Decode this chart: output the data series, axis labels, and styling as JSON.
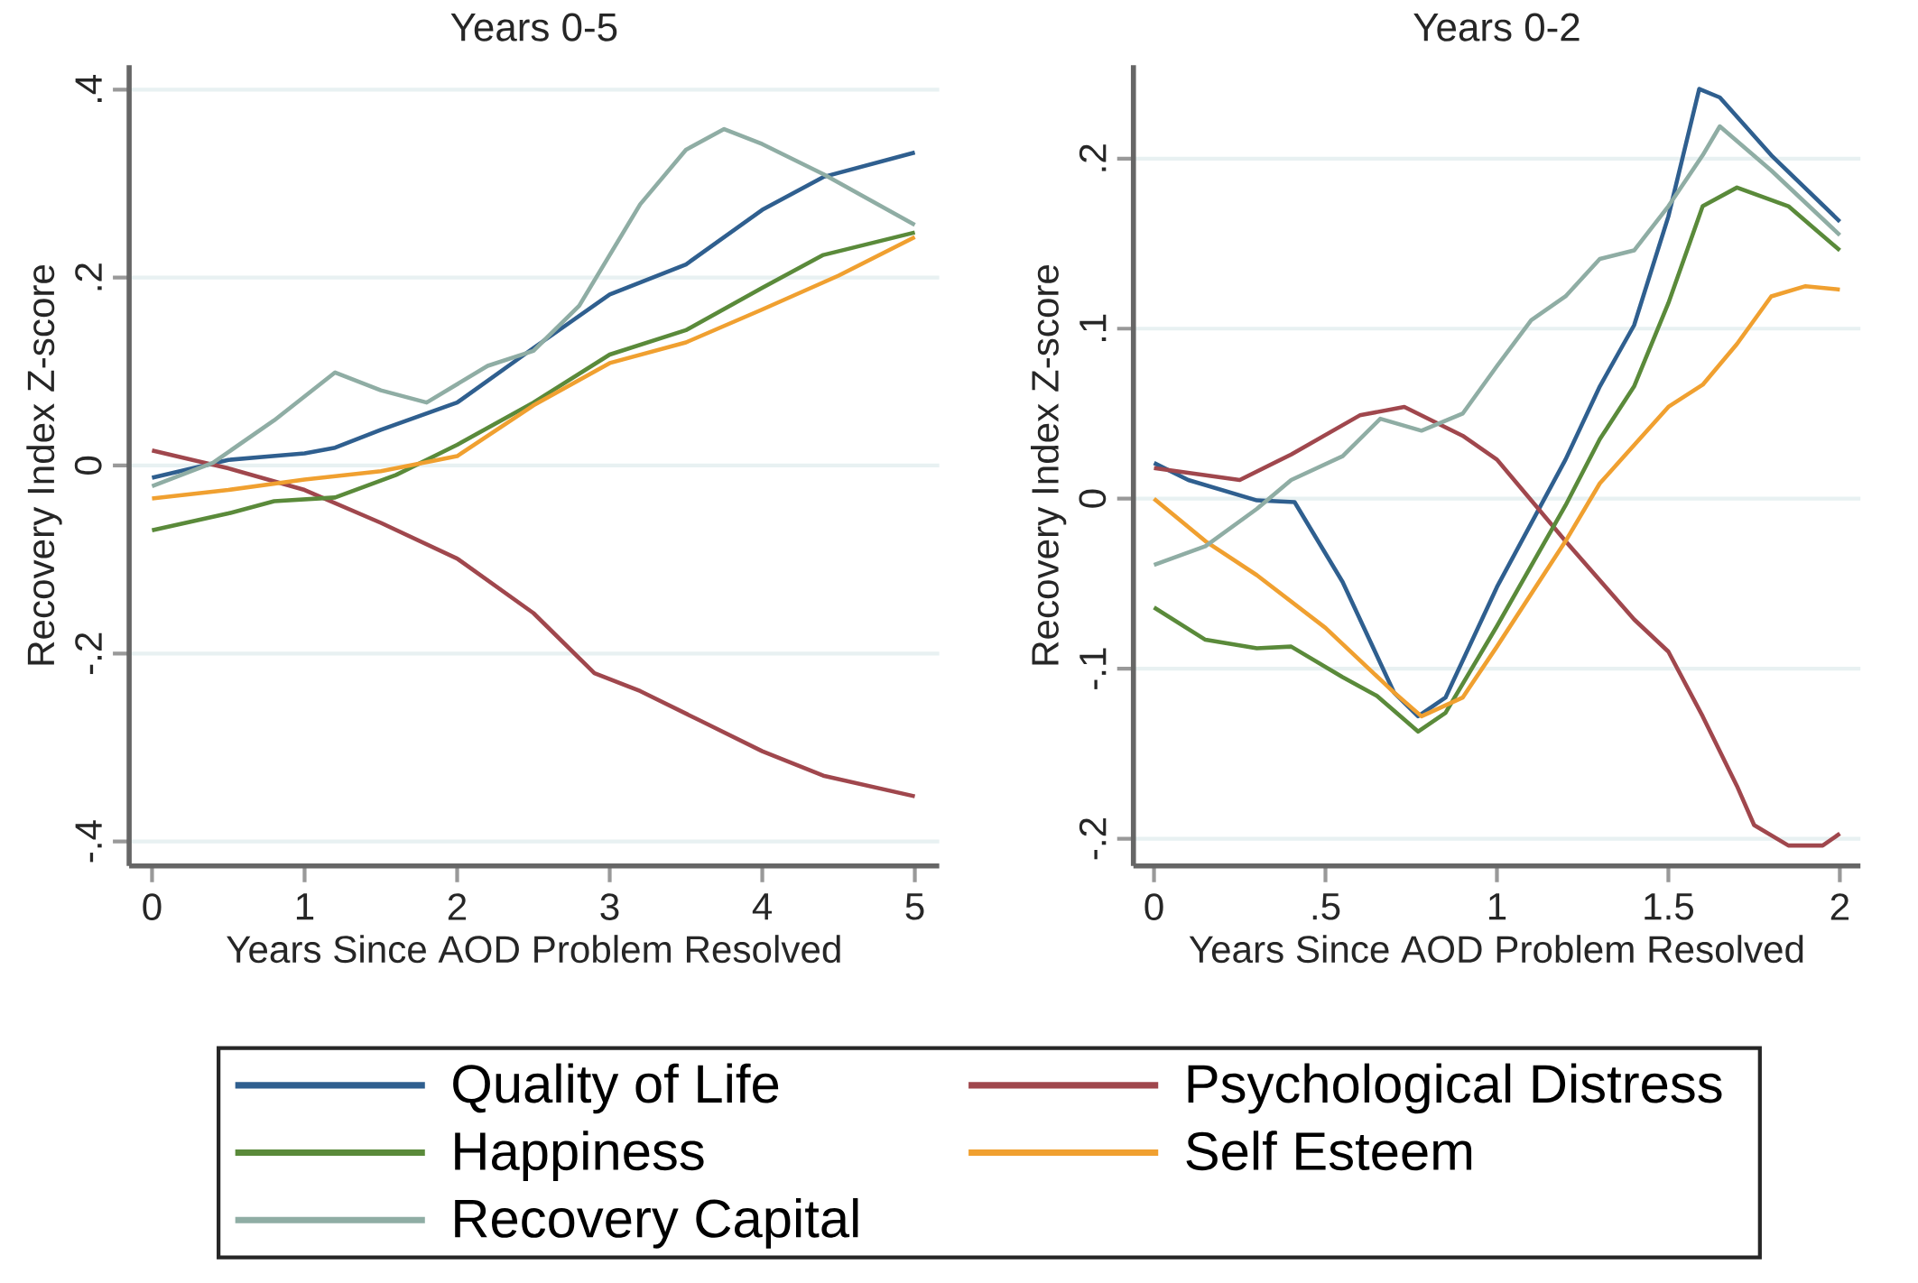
{
  "chart_data": [
    {
      "type": "line",
      "title": "Years 0-5",
      "xlabel": "Years Since AOD Problem Resolved",
      "ylabel": "Recovery Index Z-score",
      "xlim": [
        -0.15,
        5.16
      ],
      "ylim": [
        -0.426,
        0.426
      ],
      "xticks": [
        0,
        1,
        2,
        3,
        4,
        5
      ],
      "yticks": [
        {
          "value": -0.4,
          "label": "-.4"
        },
        {
          "value": -0.2,
          "label": "-.2"
        },
        0,
        {
          "value": 0.2,
          "label": ".2"
        },
        {
          "value": 0.4,
          "label": ".4"
        }
      ],
      "grid": "y",
      "legend": "bottom",
      "line_style": "solid",
      "marker": "none",
      "series": [
        {
          "name": "Quality of Life",
          "color": "#2f5f8f",
          "x": [
            0,
            0.5,
            1,
            1.2,
            1.5,
            2,
            2.5,
            3,
            3.5,
            4,
            4.4,
            5
          ],
          "values": [
            -0.013,
            0.006,
            0.013,
            0.019,
            0.038,
            0.067,
            0.125,
            0.182,
            0.214,
            0.272,
            0.307,
            0.333
          ]
        },
        {
          "name": "Psychological Distress",
          "color": "#a0474d",
          "x": [
            0,
            0.5,
            1,
            1.5,
            2,
            2.5,
            2.9,
            3.2,
            3.6,
            4,
            4.4,
            5
          ],
          "values": [
            0.016,
            -0.003,
            -0.026,
            -0.061,
            -0.099,
            -0.157,
            -0.221,
            -0.24,
            -0.272,
            -0.304,
            -0.33,
            -0.352
          ]
        },
        {
          "name": "Happiness",
          "color": "#5a8a3a",
          "x": [
            0,
            0.5,
            0.8,
            1.2,
            1.6,
            2,
            2.5,
            3,
            3.5,
            4,
            4.4,
            5
          ],
          "values": [
            -0.069,
            -0.051,
            -0.038,
            -0.034,
            -0.01,
            0.022,
            0.067,
            0.118,
            0.144,
            0.189,
            0.224,
            0.248
          ]
        },
        {
          "name": "Self Esteem",
          "color": "#f0a030",
          "x": [
            0,
            0.5,
            1,
            1.5,
            2,
            2.5,
            3,
            3.5,
            4,
            4.5,
            5
          ],
          "values": [
            -0.035,
            -0.026,
            -0.015,
            -0.006,
            0.01,
            0.064,
            0.109,
            0.131,
            0.166,
            0.202,
            0.243
          ]
        },
        {
          "name": "Recovery Capital",
          "color": "#8fada4",
          "x": [
            0,
            0.4,
            0.8,
            1.2,
            1.5,
            1.8,
            2.2,
            2.5,
            2.8,
            3.2,
            3.5,
            3.75,
            4,
            4.4,
            5
          ],
          "values": [
            -0.022,
            0.003,
            0.048,
            0.099,
            0.08,
            0.067,
            0.106,
            0.122,
            0.17,
            0.278,
            0.336,
            0.358,
            0.342,
            0.31,
            0.256
          ]
        }
      ]
    },
    {
      "type": "line",
      "title": "Years 0-2",
      "xlabel": "Years Since AOD Problem Resolved",
      "ylabel": "Recovery Index Z-score",
      "xlim": [
        -0.06,
        2.06
      ],
      "ylim": [
        -0.216,
        0.255
      ],
      "xticks": [
        0,
        {
          "value": 0.5,
          "label": ".5"
        },
        1,
        1.5,
        2
      ],
      "yticks": [
        {
          "value": -0.2,
          "label": "-.2"
        },
        {
          "value": -0.1,
          "label": "-.1"
        },
        0,
        {
          "value": 0.1,
          "label": ".1"
        },
        {
          "value": 0.2,
          "label": ".2"
        }
      ],
      "grid": "y",
      "line_style": "solid",
      "marker": "none",
      "series": [
        {
          "color": "#2f5f8f",
          "x": [
            0,
            0.1,
            0.3,
            0.41,
            0.55,
            0.7,
            0.77,
            0.85,
            1.0,
            1.2,
            1.3,
            1.4,
            1.5,
            1.59,
            1.65,
            1.8,
            2.0
          ],
          "values": [
            0.021,
            0.011,
            -0.001,
            -0.002,
            -0.049,
            -0.114,
            -0.128,
            -0.117,
            -0.052,
            0.023,
            0.066,
            0.102,
            0.166,
            0.241,
            0.236,
            0.202,
            0.163
          ]
        },
        {
          "color": "#a0474d",
          "x": [
            0,
            0.25,
            0.4,
            0.6,
            0.73,
            0.9,
            1.0,
            1.1,
            1.2,
            1.4,
            1.5,
            1.6,
            1.7,
            1.75,
            1.85,
            1.95,
            2.0
          ],
          "values": [
            0.018,
            0.011,
            0.026,
            0.049,
            0.054,
            0.037,
            0.023,
            -0.001,
            -0.025,
            -0.071,
            -0.09,
            -0.128,
            -0.169,
            -0.192,
            -0.204,
            -0.204,
            -0.197
          ]
        },
        {
          "color": "#5a8a3a",
          "x": [
            0,
            0.15,
            0.3,
            0.4,
            0.55,
            0.65,
            0.77,
            0.85,
            1.0,
            1.2,
            1.3,
            1.4,
            1.5,
            1.6,
            1.7,
            1.85,
            2.0
          ],
          "values": [
            -0.064,
            -0.083,
            -0.088,
            -0.087,
            -0.105,
            -0.116,
            -0.137,
            -0.126,
            -0.075,
            -0.004,
            0.035,
            0.066,
            0.115,
            0.172,
            0.183,
            0.172,
            0.146
          ]
        },
        {
          "color": "#f0a030",
          "x": [
            0,
            0.15,
            0.3,
            0.5,
            0.7,
            0.78,
            0.9,
            1.0,
            1.2,
            1.3,
            1.5,
            1.6,
            1.7,
            1.8,
            1.9,
            2.0
          ],
          "values": [
            0.0,
            -0.025,
            -0.045,
            -0.076,
            -0.114,
            -0.128,
            -0.117,
            -0.087,
            -0.025,
            0.009,
            0.054,
            0.067,
            0.091,
            0.119,
            0.125,
            0.123
          ]
        },
        {
          "color": "#8fada4",
          "x": [
            0,
            0.15,
            0.3,
            0.4,
            0.55,
            0.66,
            0.78,
            0.9,
            1.0,
            1.1,
            1.2,
            1.3,
            1.4,
            1.5,
            1.6,
            1.65,
            1.8,
            2.0
          ],
          "values": [
            -0.039,
            -0.028,
            -0.006,
            0.011,
            0.025,
            0.047,
            0.04,
            0.05,
            0.078,
            0.105,
            0.119,
            0.141,
            0.146,
            0.172,
            0.202,
            0.219,
            0.193,
            0.155
          ]
        }
      ]
    }
  ]
}
